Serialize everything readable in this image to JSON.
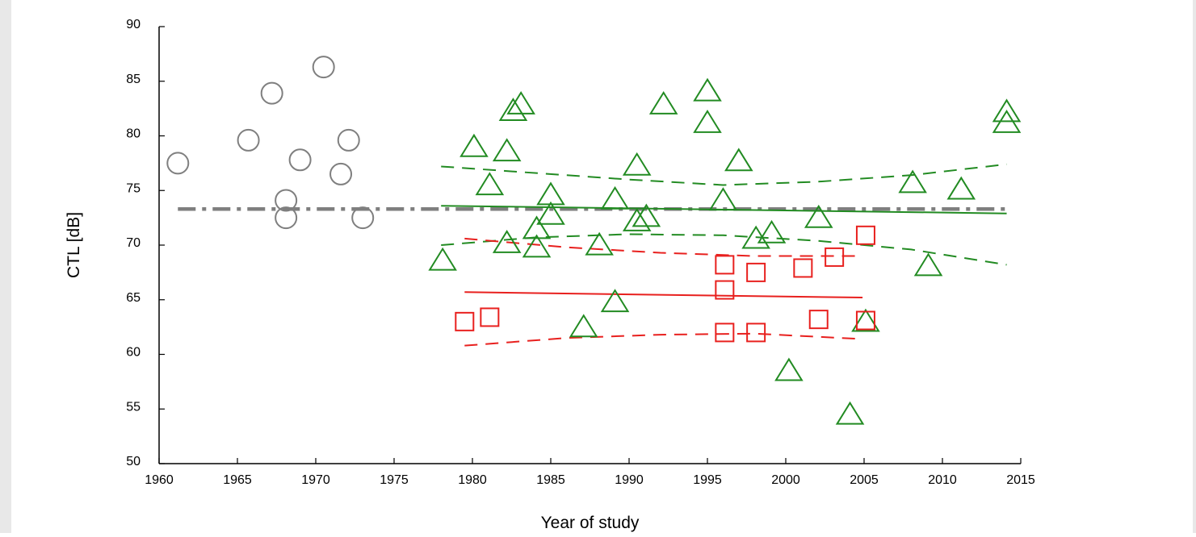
{
  "chart_data": {
    "type": "scatter",
    "title": "",
    "xlabel": "Year of study",
    "ylabel": "CTL [dB]",
    "xlim": [
      1960,
      2015
    ],
    "ylim": [
      50,
      90
    ],
    "xticks": [
      1960,
      1965,
      1970,
      1975,
      1980,
      1985,
      1990,
      1995,
      2000,
      2005,
      2010,
      2015
    ],
    "yticks": [
      50,
      55,
      60,
      65,
      70,
      75,
      80,
      85,
      90
    ],
    "grid": false,
    "legend": "none",
    "series": [
      {
        "marker": "circle",
        "color": "#7f7f7f",
        "points": [
          [
            1961.2,
            77.5
          ],
          [
            1965.7,
            79.6
          ],
          [
            1967.2,
            83.9
          ],
          [
            1968.1,
            74.1
          ],
          [
            1968.1,
            72.5
          ],
          [
            1969.0,
            77.8
          ],
          [
            1970.5,
            86.3
          ],
          [
            1971.6,
            76.5
          ],
          [
            1972.1,
            79.6
          ],
          [
            1973.0,
            72.5
          ]
        ]
      },
      {
        "marker": "triangle",
        "color": "#228b22",
        "points": [
          [
            1978.1,
            68.7
          ],
          [
            1980.1,
            79.1
          ],
          [
            1981.1,
            75.6
          ],
          [
            1982.2,
            78.7
          ],
          [
            1982.2,
            70.3
          ],
          [
            1982.6,
            82.4
          ],
          [
            1983.1,
            83.0
          ],
          [
            1984.1,
            71.6
          ],
          [
            1984.1,
            69.9
          ],
          [
            1985.0,
            74.7
          ],
          [
            1985.0,
            72.9
          ],
          [
            1987.1,
            62.6
          ],
          [
            1988.1,
            70.1
          ],
          [
            1989.1,
            64.9
          ],
          [
            1989.1,
            74.3
          ],
          [
            1990.5,
            77.4
          ],
          [
            1990.5,
            72.3
          ],
          [
            1991.1,
            72.7
          ],
          [
            1992.2,
            83.0
          ],
          [
            1995.0,
            84.2
          ],
          [
            1995.0,
            81.3
          ],
          [
            1996.0,
            74.2
          ],
          [
            1997.0,
            77.8
          ],
          [
            1998.1,
            70.7
          ],
          [
            1999.1,
            71.2
          ],
          [
            2000.2,
            58.6
          ],
          [
            2002.1,
            72.6
          ],
          [
            2004.1,
            54.6
          ],
          [
            2005.1,
            63.1
          ],
          [
            2008.1,
            75.8
          ],
          [
            2009.1,
            68.2
          ],
          [
            2011.2,
            75.2
          ],
          [
            2014.1,
            82.3
          ],
          [
            2014.1,
            81.3
          ]
        ]
      },
      {
        "marker": "square",
        "color": "#e8201e",
        "points": [
          [
            1979.5,
            63.0
          ],
          [
            1981.1,
            63.4
          ],
          [
            1996.1,
            68.2
          ],
          [
            1996.1,
            65.9
          ],
          [
            1996.1,
            62.0
          ],
          [
            1998.1,
            67.5
          ],
          [
            1998.1,
            62.0
          ],
          [
            2001.1,
            67.9
          ],
          [
            2002.1,
            63.2
          ],
          [
            2003.1,
            68.9
          ],
          [
            2005.1,
            70.9
          ],
          [
            2005.1,
            63.1
          ]
        ]
      }
    ],
    "lines": [
      {
        "color": "#7f7f7f",
        "style": "dashdot",
        "width": 4.5,
        "points": [
          [
            1961.2,
            73.3
          ],
          [
            2014.2,
            73.3
          ]
        ]
      },
      {
        "color": "#228b22",
        "style": "solid",
        "width": 2,
        "points": [
          [
            1978.0,
            73.6
          ],
          [
            2014.1,
            72.9
          ]
        ]
      },
      {
        "color": "#228b22",
        "style": "dashed",
        "width": 2,
        "points": [
          [
            1978.0,
            77.2
          ],
          [
            1990.0,
            76.0
          ],
          [
            1996.0,
            75.5
          ],
          [
            2002.0,
            75.8
          ],
          [
            2008.0,
            76.4
          ],
          [
            2014.1,
            77.4
          ]
        ]
      },
      {
        "color": "#228b22",
        "style": "dashed",
        "width": 2,
        "points": [
          [
            1978.0,
            70.0
          ],
          [
            1984.0,
            70.7
          ],
          [
            1990.0,
            71.0
          ],
          [
            1996.0,
            70.9
          ],
          [
            2002.0,
            70.4
          ],
          [
            2008.0,
            69.6
          ],
          [
            2014.1,
            68.2
          ]
        ]
      },
      {
        "color": "#e8201e",
        "style": "solid",
        "width": 2,
        "points": [
          [
            1979.5,
            65.7
          ],
          [
            2004.9,
            65.2
          ]
        ]
      },
      {
        "color": "#e8201e",
        "style": "dashed",
        "width": 2,
        "points": [
          [
            1979.5,
            70.6
          ],
          [
            1986.0,
            69.8
          ],
          [
            1992.0,
            69.3
          ],
          [
            1998.0,
            69.0
          ],
          [
            2004.9,
            69.0
          ]
        ]
      },
      {
        "color": "#e8201e",
        "style": "dashed",
        "width": 2,
        "points": [
          [
            1979.5,
            60.8
          ],
          [
            1986.0,
            61.5
          ],
          [
            1992.0,
            61.8
          ],
          [
            1998.0,
            61.9
          ],
          [
            2004.9,
            61.4
          ]
        ]
      }
    ]
  }
}
